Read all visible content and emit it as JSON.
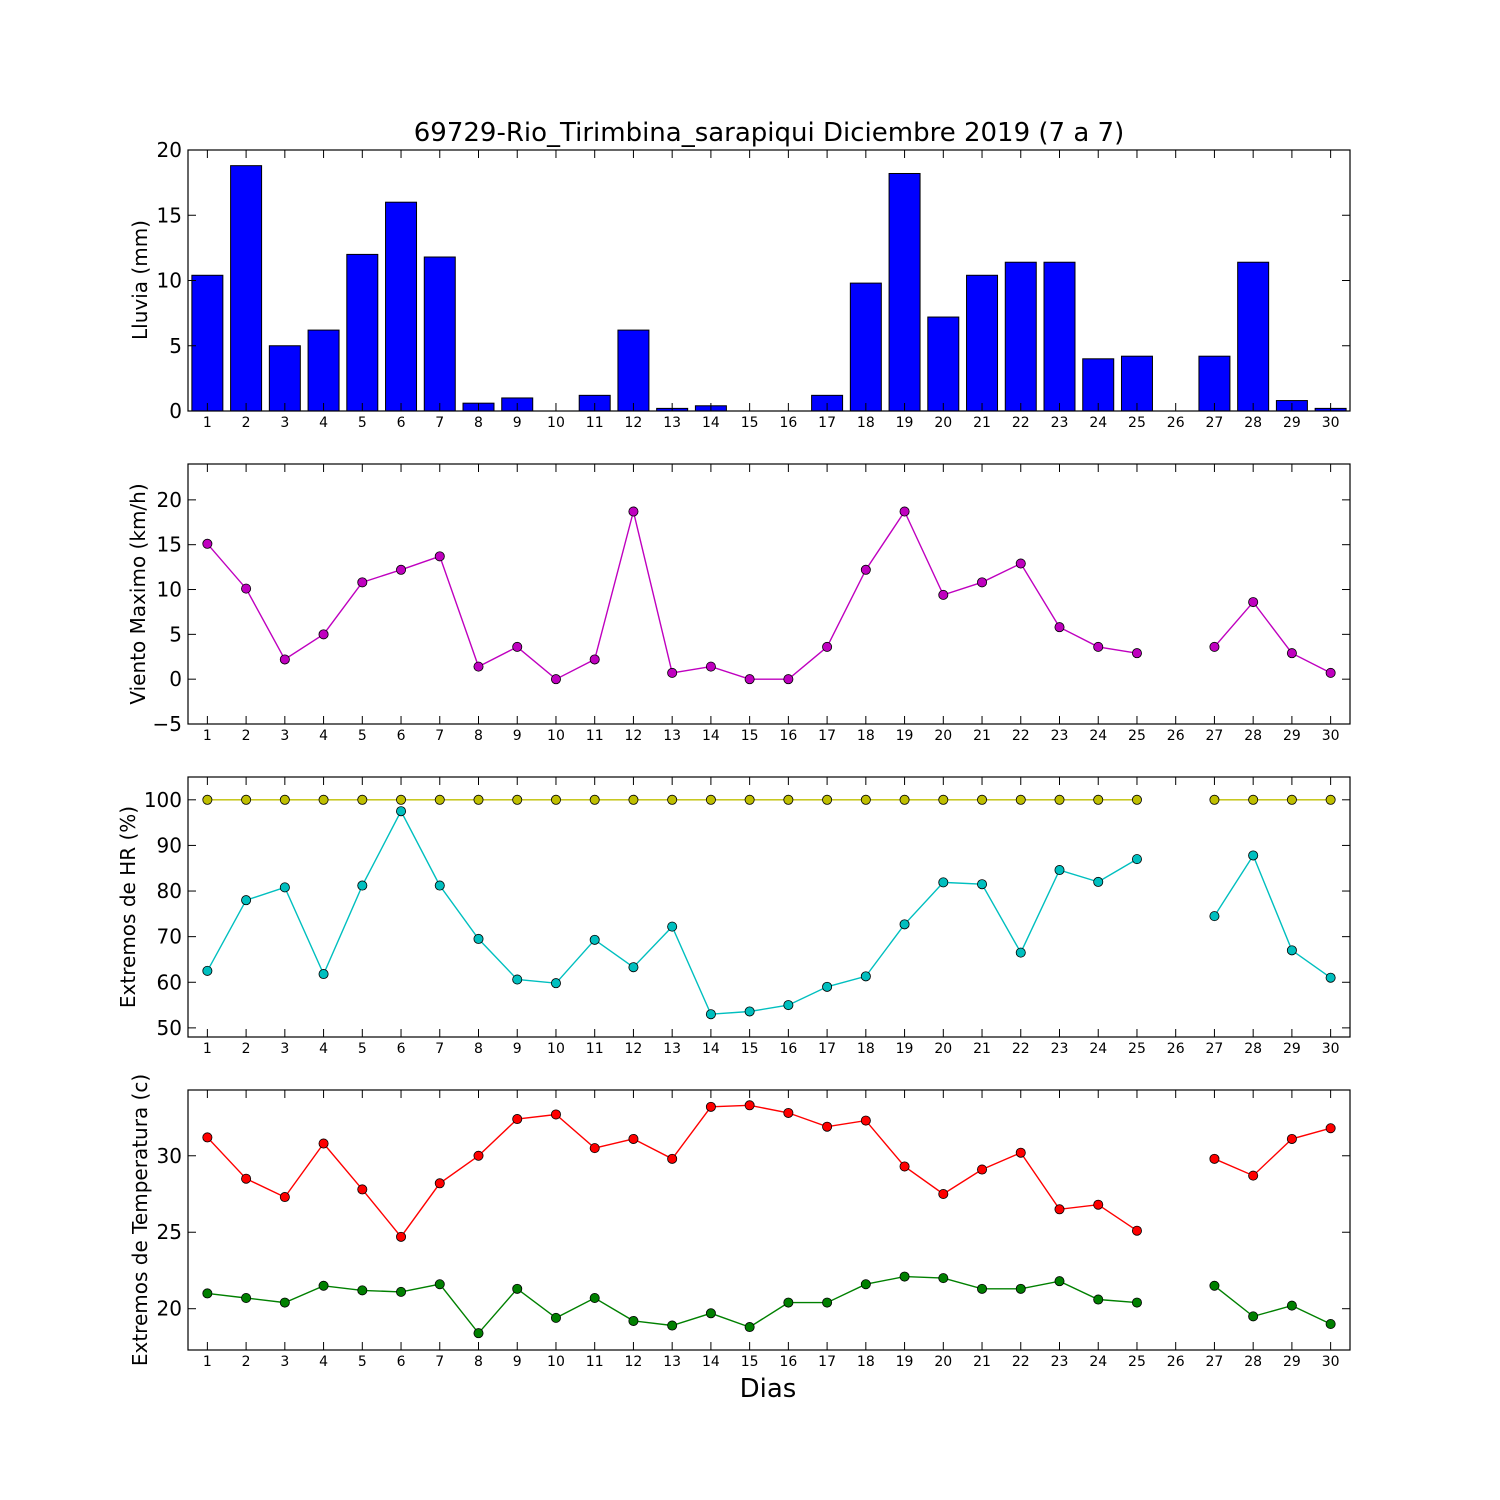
{
  "chart_data": [
    {
      "type": "bar",
      "title": "69729-Rio_Tirimbina_sarapiqui Diciembre 2019  (7 a 7)",
      "ylabel": "Lluvia (mm)",
      "xlabel": "",
      "categories": [
        "1",
        "2",
        "3",
        "4",
        "5",
        "6",
        "7",
        "8",
        "9",
        "10",
        "11",
        "12",
        "13",
        "14",
        "15",
        "16",
        "17",
        "18",
        "19",
        "20",
        "21",
        "22",
        "23",
        "24",
        "25",
        "26",
        "27",
        "28",
        "29",
        "30"
      ],
      "series": [
        {
          "color": "#0000ff",
          "values": [
            10.4,
            18.8,
            5.0,
            6.2,
            12.0,
            16.0,
            11.8,
            0.6,
            1.0,
            0.0,
            1.2,
            6.2,
            0.2,
            0.4,
            0.0,
            0.0,
            1.2,
            9.8,
            18.2,
            7.2,
            10.4,
            11.4,
            11.4,
            4.0,
            4.2,
            null,
            4.2,
            11.4,
            0.8,
            0.2
          ]
        }
      ],
      "ylim": [
        0,
        20
      ],
      "yticks": [
        0,
        5,
        10,
        15,
        20
      ],
      "grid": false
    },
    {
      "type": "line",
      "ylabel": "Viento Maximo (km/h)",
      "xlabel": "",
      "categories": [
        "1",
        "2",
        "3",
        "4",
        "5",
        "6",
        "7",
        "8",
        "9",
        "10",
        "11",
        "12",
        "13",
        "14",
        "15",
        "16",
        "17",
        "18",
        "19",
        "20",
        "21",
        "22",
        "23",
        "24",
        "25",
        "26",
        "27",
        "28",
        "29",
        "30"
      ],
      "series": [
        {
          "color": "#bf00bf",
          "values": [
            15.1,
            10.1,
            2.2,
            5.0,
            10.8,
            12.2,
            13.7,
            1.4,
            3.6,
            0.0,
            2.2,
            18.7,
            0.7,
            1.4,
            0.0,
            0.0,
            3.6,
            12.2,
            18.7,
            9.4,
            10.8,
            12.9,
            5.8,
            3.6,
            2.9,
            null,
            3.6,
            8.6,
            2.9,
            0.7
          ]
        }
      ],
      "ylim": [
        -5,
        24
      ],
      "yticks": [
        -5,
        0,
        5,
        10,
        15,
        20
      ],
      "grid": false
    },
    {
      "type": "line",
      "ylabel": "Extremos de HR (%)",
      "xlabel": "",
      "categories": [
        "1",
        "2",
        "3",
        "4",
        "5",
        "6",
        "7",
        "8",
        "9",
        "10",
        "11",
        "12",
        "13",
        "14",
        "15",
        "16",
        "17",
        "18",
        "19",
        "20",
        "21",
        "22",
        "23",
        "24",
        "25",
        "26",
        "27",
        "28",
        "29",
        "30"
      ],
      "series": [
        {
          "color": "#bfbf00",
          "values": [
            100,
            100,
            100,
            100,
            100,
            100,
            100,
            100,
            100,
            100,
            100,
            100,
            100,
            100,
            100,
            100,
            100,
            100,
            100,
            100,
            100,
            100,
            100,
            100,
            100,
            null,
            100,
            100,
            100,
            100
          ]
        },
        {
          "color": "#00bfbf",
          "values": [
            62.5,
            78.0,
            80.8,
            61.8,
            81.2,
            97.5,
            81.2,
            69.5,
            60.6,
            59.8,
            69.3,
            63.3,
            72.2,
            53.0,
            53.6,
            55.0,
            59.0,
            61.3,
            72.7,
            81.9,
            81.5,
            66.5,
            84.6,
            82.0,
            87.0,
            null,
            74.5,
            87.8,
            67.0,
            61.0
          ]
        }
      ],
      "ylim": [
        48,
        105
      ],
      "yticks": [
        50,
        60,
        70,
        80,
        90,
        100
      ],
      "grid": false
    },
    {
      "type": "line",
      "ylabel": "Extremos de Temperatura (c)",
      "xlabel": "Dias",
      "categories": [
        "1",
        "2",
        "3",
        "4",
        "5",
        "6",
        "7",
        "8",
        "9",
        "10",
        "11",
        "12",
        "13",
        "14",
        "15",
        "16",
        "17",
        "18",
        "19",
        "20",
        "21",
        "22",
        "23",
        "24",
        "25",
        "26",
        "27",
        "28",
        "29",
        "30"
      ],
      "series": [
        {
          "color": "#ff0000",
          "values": [
            31.2,
            28.5,
            27.3,
            30.8,
            27.8,
            24.7,
            28.2,
            30.0,
            32.4,
            32.7,
            30.5,
            31.1,
            29.8,
            33.2,
            33.3,
            32.8,
            31.9,
            32.3,
            29.3,
            27.5,
            29.1,
            30.2,
            26.5,
            26.8,
            25.1,
            null,
            29.8,
            28.7,
            31.1,
            31.8
          ]
        },
        {
          "color": "#008000",
          "values": [
            21.0,
            20.7,
            20.4,
            21.5,
            21.2,
            21.1,
            21.6,
            18.4,
            21.3,
            19.4,
            20.7,
            19.2,
            18.9,
            19.7,
            18.8,
            20.4,
            20.4,
            21.6,
            22.1,
            22.0,
            21.3,
            21.3,
            21.8,
            20.6,
            20.4,
            null,
            21.5,
            19.5,
            20.2,
            19.0
          ]
        }
      ],
      "ylim": [
        17.3,
        34.3
      ],
      "yticks": [
        20,
        25,
        30
      ],
      "grid": false
    }
  ]
}
